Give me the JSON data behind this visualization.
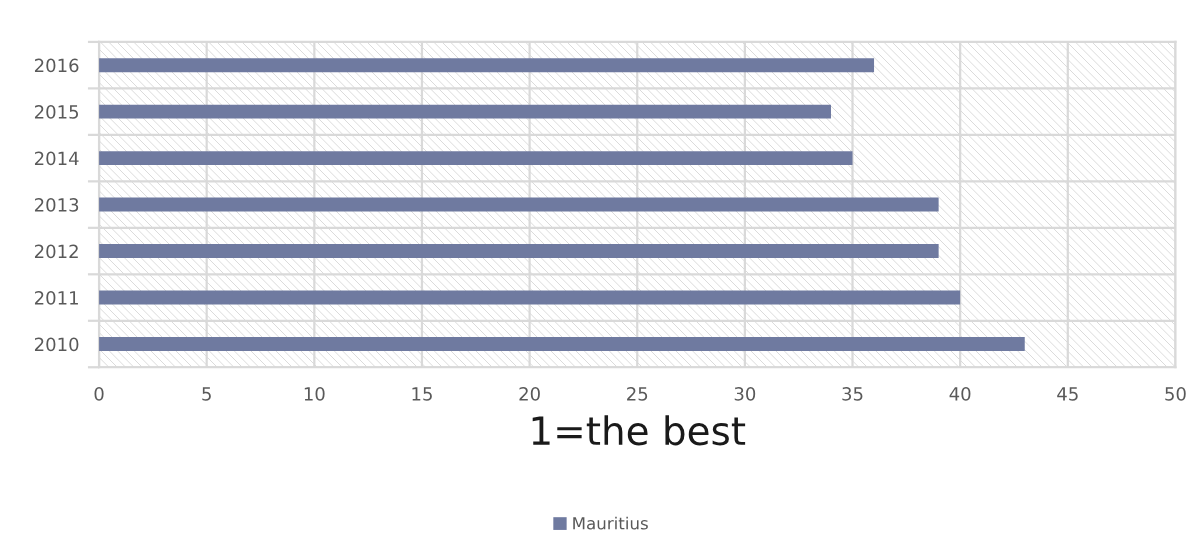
{
  "chart_data": {
    "type": "bar",
    "orientation": "horizontal",
    "xlabel": "1=the best",
    "categories": [
      "2016",
      "2015",
      "2014",
      "2013",
      "2012",
      "2011",
      "2010"
    ],
    "series": [
      {
        "name": "Mauritius",
        "color": "#6f7aa0",
        "values": [
          36,
          34,
          35,
          39,
          39,
          40,
          43
        ]
      }
    ],
    "xlim": [
      0,
      50
    ],
    "xticks": [
      0,
      5,
      10,
      15,
      20,
      25,
      30,
      35,
      40,
      45,
      50
    ],
    "grid": true,
    "legend": "bottom"
  }
}
